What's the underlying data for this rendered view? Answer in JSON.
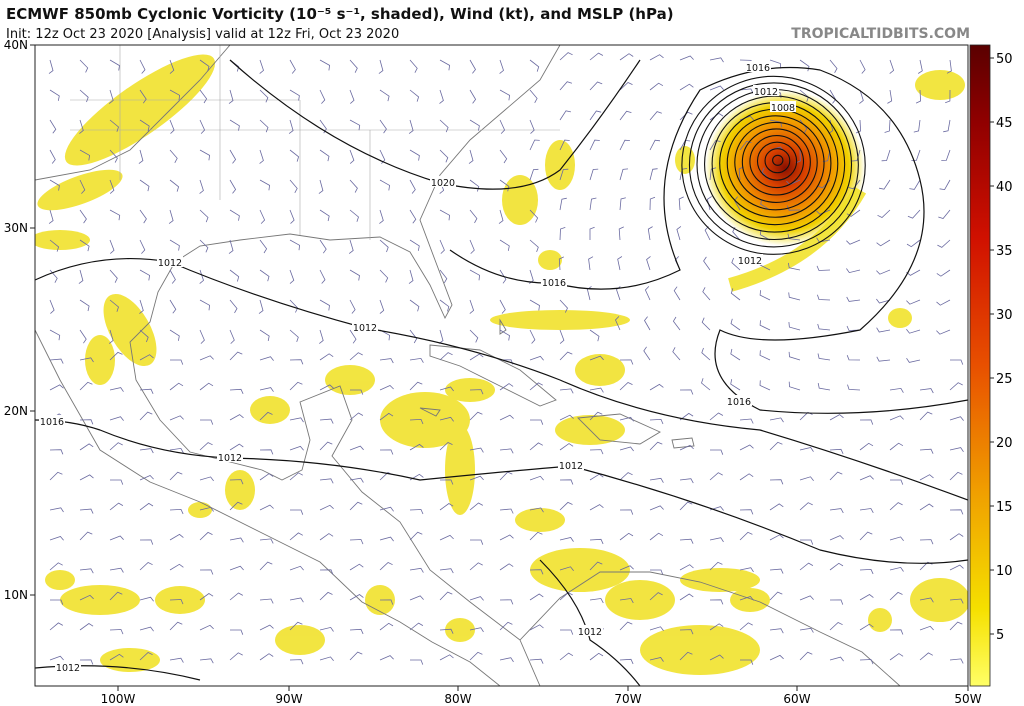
{
  "header": {
    "title": "ECMWF 850mb Cyclonic Vorticity (10⁻⁵ s⁻¹, shaded), Wind (kt), and MSLP (hPa)",
    "subtitle": "Init: 12z Oct 23 2020   [Analysis]   valid at 12z Fri, Oct 23 2020",
    "credit": "TROPICALTIDBITS.COM"
  },
  "map": {
    "lat_labels": [
      "40N",
      "30N",
      "20N",
      "10N"
    ],
    "lon_labels": [
      "100W",
      "90W",
      "80W",
      "70W",
      "60W",
      "50W"
    ],
    "isobar_labels": [
      "1016",
      "1012",
      "1008",
      "1020",
      "1012",
      "1016",
      "1012",
      "1012",
      "1016",
      "1012",
      "1016",
      "1012",
      "1012",
      "1012"
    ]
  },
  "colorbar": {
    "ticks": [
      50,
      45,
      40,
      35,
      30,
      25,
      20,
      15,
      10,
      5
    ]
  }
}
